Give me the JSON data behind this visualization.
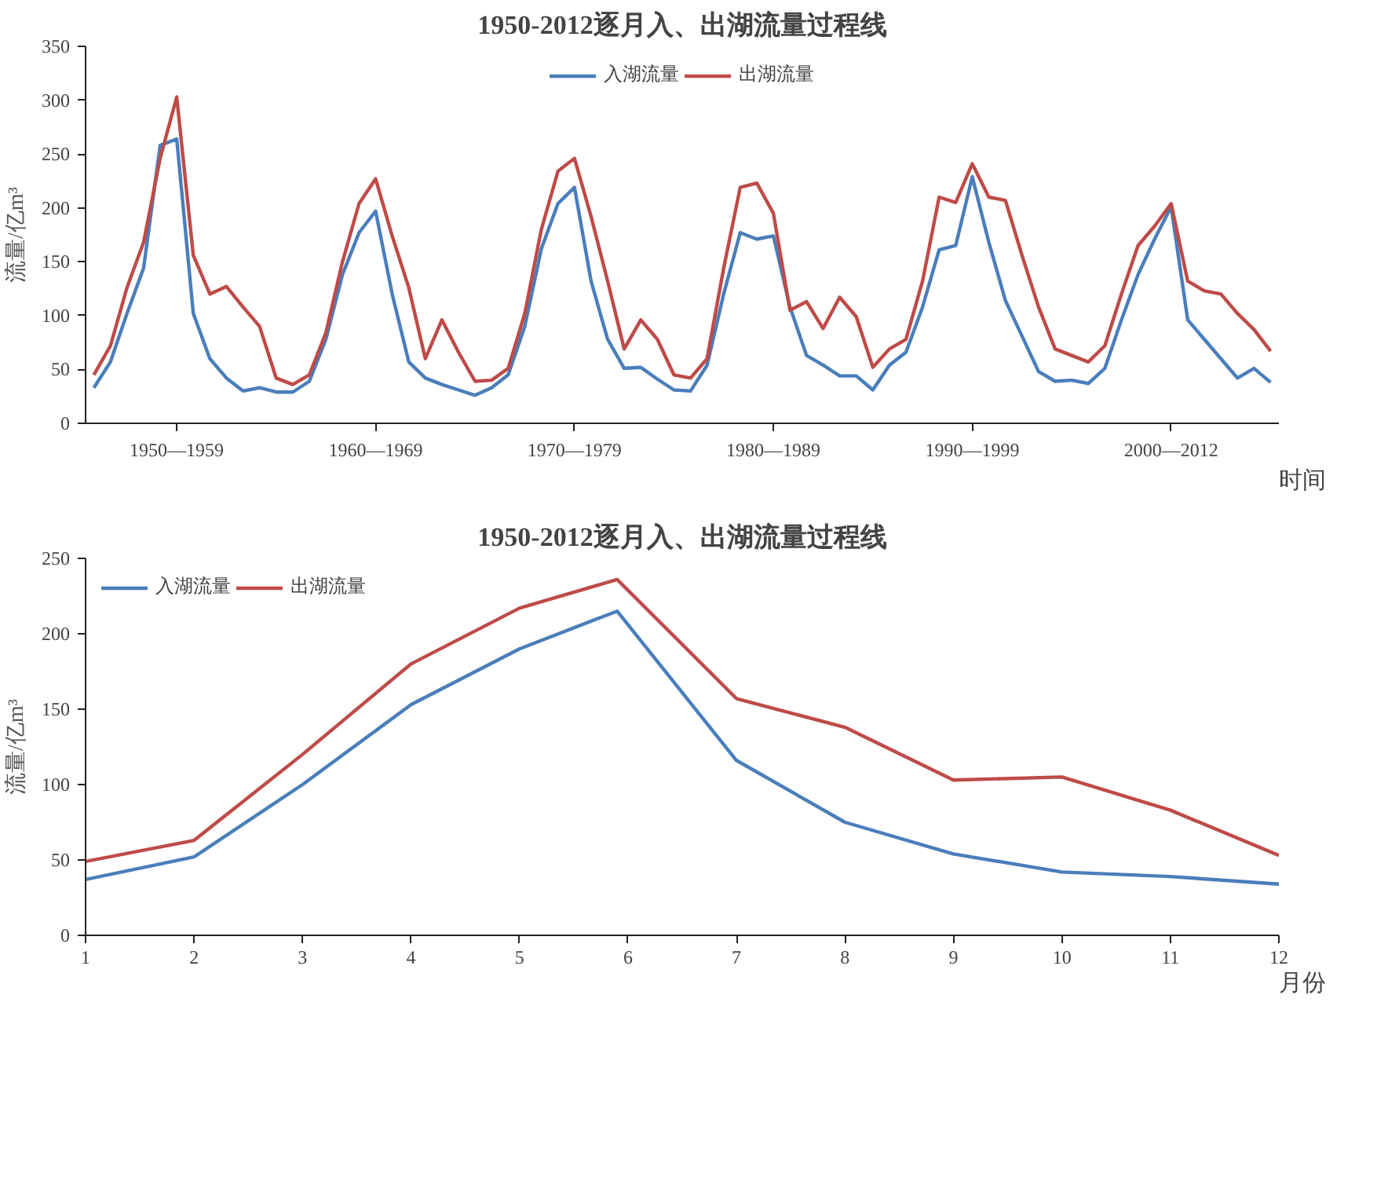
{
  "chart_data": [
    {
      "type": "line",
      "title": "1950-2012逐月入、出湖流量过程线",
      "xlabel": "时间",
      "ylabel": "流量/亿m³",
      "legend": "top",
      "grid": false,
      "marker": "none",
      "line_style": "solid",
      "categories": [
        null,
        null,
        null,
        null,
        null,
        "1950—1959",
        null,
        null,
        null,
        null,
        null,
        null,
        null,
        null,
        null,
        null,
        null,
        "1960—1969",
        null,
        null,
        null,
        null,
        null,
        null,
        null,
        null,
        null,
        null,
        null,
        "1970—1979",
        null,
        null,
        null,
        null,
        null,
        null,
        null,
        null,
        null,
        null,
        null,
        "1980—1989",
        null,
        null,
        null,
        null,
        null,
        null,
        null,
        null,
        null,
        null,
        null,
        "1990—1999",
        null,
        null,
        null,
        null,
        null,
        null,
        null,
        null,
        null,
        null,
        null,
        "2000—2012",
        null,
        null,
        null,
        null,
        null,
        null
      ],
      "ylim": [
        0,
        350
      ],
      "yticks": [
        0,
        50,
        100,
        150,
        200,
        250,
        300,
        350
      ],
      "series": [
        {
          "name": "入湖流量",
          "color": "#4a7ebb",
          "values": [
            33,
            57,
            102,
            144,
            258,
            264,
            102,
            60,
            42,
            30,
            33,
            29,
            29,
            39,
            78,
            138,
            177,
            197,
            120,
            57,
            42,
            36,
            31,
            26,
            33,
            45,
            90,
            162,
            204,
            219,
            132,
            78,
            51,
            52,
            41,
            31,
            30,
            54,
            120,
            177,
            171,
            174,
            108,
            63,
            54,
            44,
            44,
            31,
            54,
            66,
            108,
            161,
            165,
            229,
            168,
            114,
            81,
            48,
            39,
            40,
            37,
            51,
            96,
            138,
            171,
            201,
            96,
            78,
            60,
            42,
            51,
            38
          ]
        },
        {
          "name": "出湖流量",
          "color": "#be4b48",
          "values": [
            45,
            72,
            126,
            168,
            246,
            303,
            156,
            120,
            127,
            108,
            90,
            42,
            36,
            45,
            84,
            150,
            204,
            227,
            174,
            126,
            60,
            96,
            66,
            39,
            40,
            51,
            102,
            180,
            234,
            246,
            192,
            132,
            69,
            96,
            78,
            45,
            42,
            60,
            144,
            219,
            223,
            195,
            105,
            113,
            88,
            117,
            99,
            52,
            69,
            78,
            132,
            210,
            205,
            241,
            210,
            207,
            156,
            108,
            69,
            63,
            57,
            72,
            120,
            165,
            183,
            204,
            132,
            123,
            120,
            102,
            87,
            67
          ]
        }
      ]
    },
    {
      "type": "line",
      "title": "1950-2012逐月入、出湖流量过程线",
      "xlabel": "月份",
      "ylabel": "流量/亿m³",
      "legend": "top left",
      "grid": false,
      "marker": "none",
      "line_style": "solid",
      "x": [
        1,
        2,
        3,
        4,
        5,
        5.9,
        7,
        8,
        9,
        10,
        11,
        12
      ],
      "xlim": [
        1,
        12
      ],
      "xticks": [
        1,
        2,
        3,
        4,
        5,
        6,
        7,
        8,
        9,
        10,
        11,
        12
      ],
      "ylim": [
        0,
        250
      ],
      "yticks": [
        0,
        50,
        100,
        150,
        200,
        250
      ],
      "series": [
        {
          "name": "入湖流量",
          "color": "#4a7ebb",
          "values": [
            37,
            52,
            100,
            153,
            190,
            215,
            116,
            75,
            54,
            42,
            39,
            34
          ]
        },
        {
          "name": "出湖流量",
          "color": "#be4b48",
          "values": [
            49,
            63,
            120,
            180,
            217,
            236,
            157,
            138,
            103,
            105,
            83,
            53
          ]
        }
      ]
    }
  ]
}
